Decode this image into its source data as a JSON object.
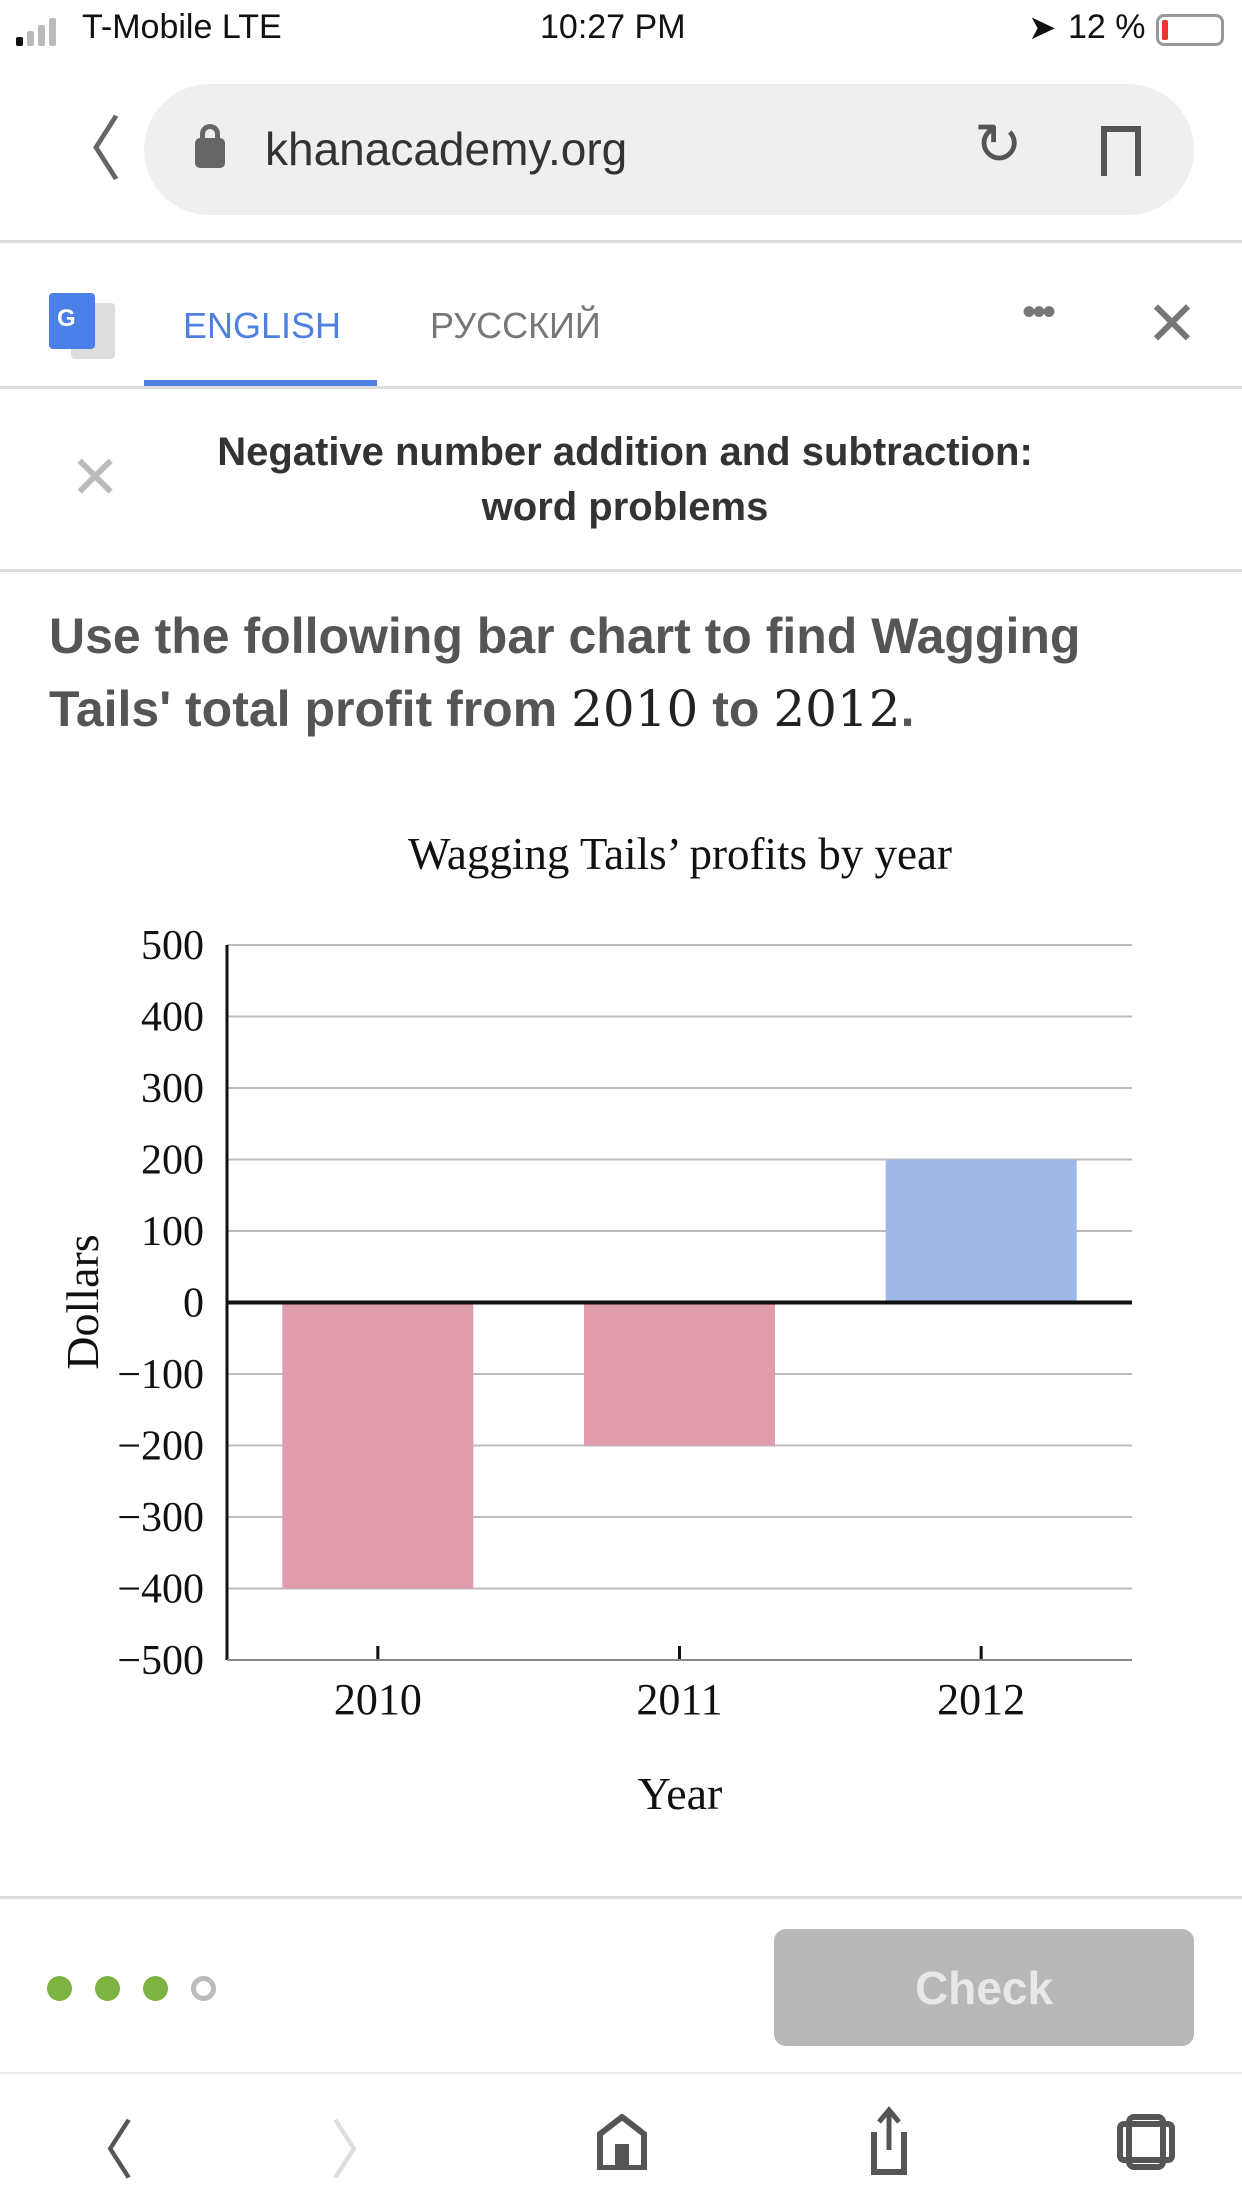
{
  "status_bar": {
    "carrier": "T-Mobile LTE",
    "time": "10:27 PM",
    "battery": "12 %"
  },
  "browser": {
    "url": "khanacademy.org"
  },
  "translate_bar": {
    "tabs": [
      {
        "label": "ENGLISH",
        "active": true
      },
      {
        "label": "РУССКИЙ",
        "active": false
      }
    ]
  },
  "exercise": {
    "title_line1": "Negative number addition and subtraction:",
    "title_line2": "word problems",
    "question_part1": "Use the following bar chart to find Wagging Tails' total profit from ",
    "year_start": "2010",
    "question_part2": " to ",
    "year_end": "2012",
    "question_part3": "."
  },
  "chart_data": {
    "type": "bar",
    "title": "Wagging Tails’ profits by year",
    "xlabel": "Year",
    "ylabel": "Dollars",
    "categories": [
      "2010",
      "2011",
      "2012"
    ],
    "values": [
      -400,
      -200,
      200
    ],
    "ylim": [
      -500,
      500
    ],
    "yticks": [
      500,
      400,
      300,
      200,
      100,
      0,
      -100,
      -200,
      -300,
      -400,
      -500
    ],
    "grid": true,
    "colors": {
      "negative": "#e09caa",
      "positive": "#a0b8e8"
    }
  },
  "footer": {
    "progress": {
      "completed": 3,
      "total": 4
    },
    "check_label": "Check"
  },
  "colors": {
    "accent": "#4f7fe0",
    "progress": "#7cb342"
  }
}
